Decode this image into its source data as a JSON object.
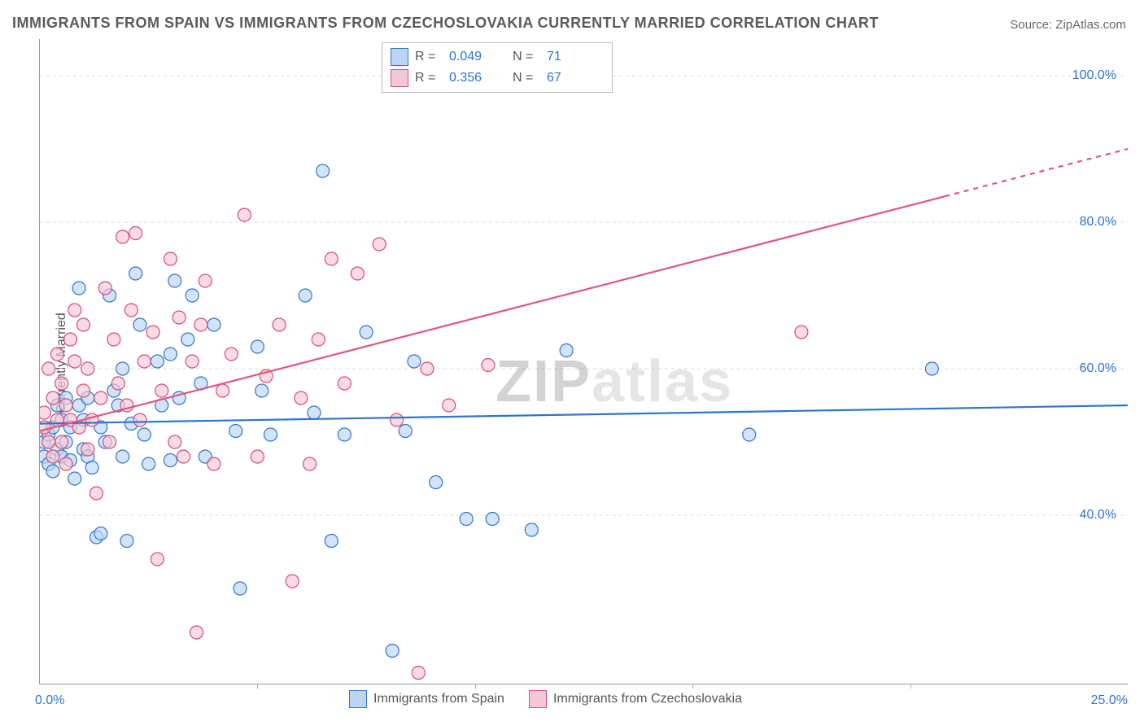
{
  "title": "IMMIGRANTS FROM SPAIN VS IMMIGRANTS FROM CZECHOSLOVAKIA CURRENTLY MARRIED CORRELATION CHART",
  "source_prefix": "Source: ",
  "source_site": "ZipAtlas.com",
  "watermark": {
    "part1": "ZIP",
    "part2": "atlas"
  },
  "chart": {
    "type": "scatter",
    "ylabel": "Currently Married",
    "xlim": [
      0,
      25
    ],
    "ylim": [
      17,
      105
    ],
    "x_min_label": "0.0%",
    "x_max_label": "25.0%",
    "y_ticks": [
      40,
      60,
      80,
      100
    ],
    "y_tick_labels": [
      "40.0%",
      "60.0%",
      "80.0%",
      "100.0%"
    ],
    "x_minor_ticks": [
      5,
      10,
      15,
      20
    ],
    "grid_color": "#dddddd",
    "grid_dash": "4 4",
    "marker_radius": 8,
    "marker_stroke_width": 1.2,
    "trend_line_width": 2.2,
    "legend_box": {
      "r_label": "R =",
      "n_label": "N ="
    },
    "series": [
      {
        "name": "Immigrants from Spain",
        "R": "0.049",
        "N": "71",
        "fill": "#bcd5f5",
        "stroke": "#2f74d0",
        "trend_color": "#2f74d0",
        "trend": {
          "x1": 0,
          "y1": 52.5,
          "x2": 25,
          "y2": 55.0,
          "dash_from_x": null
        },
        "points": [
          [
            0.1,
            48
          ],
          [
            0.1,
            50
          ],
          [
            0.2,
            47
          ],
          [
            0.2,
            51
          ],
          [
            0.3,
            52
          ],
          [
            0.3,
            46
          ],
          [
            0.4,
            55
          ],
          [
            0.4,
            49
          ],
          [
            0.5,
            48
          ],
          [
            0.5,
            53
          ],
          [
            0.6,
            50
          ],
          [
            0.6,
            56
          ],
          [
            0.7,
            47.5
          ],
          [
            0.7,
            52
          ],
          [
            0.8,
            45
          ],
          [
            0.9,
            55
          ],
          [
            0.9,
            71
          ],
          [
            1.0,
            49
          ],
          [
            1.0,
            53
          ],
          [
            1.1,
            48
          ],
          [
            1.1,
            56
          ],
          [
            1.2,
            46.5
          ],
          [
            1.3,
            37
          ],
          [
            1.4,
            37.5
          ],
          [
            1.4,
            52
          ],
          [
            1.5,
            50
          ],
          [
            1.6,
            70
          ],
          [
            1.7,
            57
          ],
          [
            1.8,
            55
          ],
          [
            1.9,
            48
          ],
          [
            1.9,
            60
          ],
          [
            2.0,
            36.5
          ],
          [
            2.1,
            52.5
          ],
          [
            2.2,
            73
          ],
          [
            2.3,
            66
          ],
          [
            2.4,
            51
          ],
          [
            2.5,
            47
          ],
          [
            2.7,
            61
          ],
          [
            2.8,
            55
          ],
          [
            3.0,
            62
          ],
          [
            3.0,
            47.5
          ],
          [
            3.1,
            72
          ],
          [
            3.2,
            56
          ],
          [
            3.4,
            64
          ],
          [
            3.5,
            70
          ],
          [
            3.7,
            58
          ],
          [
            3.8,
            48
          ],
          [
            4.0,
            66
          ],
          [
            4.5,
            51.5
          ],
          [
            4.6,
            30
          ],
          [
            5.0,
            63
          ],
          [
            5.1,
            57
          ],
          [
            5.3,
            51
          ],
          [
            6.1,
            70
          ],
          [
            6.3,
            54
          ],
          [
            6.5,
            87
          ],
          [
            6.7,
            36.5
          ],
          [
            7.0,
            51
          ],
          [
            7.5,
            65
          ],
          [
            8.1,
            21.5
          ],
          [
            8.4,
            51.5
          ],
          [
            8.6,
            61
          ],
          [
            9.1,
            44.5
          ],
          [
            9.8,
            39.5
          ],
          [
            10.4,
            39.5
          ],
          [
            11.3,
            38
          ],
          [
            12.1,
            62.5
          ],
          [
            16.3,
            51
          ],
          [
            20.5,
            60
          ]
        ]
      },
      {
        "name": "Immigrants from Czechoslovakia",
        "R": "0.356",
        "N": "67",
        "fill": "#f6c8d5",
        "stroke": "#d94a78",
        "trend_color": "#e0567f",
        "trend": {
          "x1": 0,
          "y1": 51.5,
          "x2": 25,
          "y2": 90.0,
          "dash_from_x": 20.8
        },
        "points": [
          [
            0.1,
            52
          ],
          [
            0.1,
            54
          ],
          [
            0.2,
            50
          ],
          [
            0.2,
            60
          ],
          [
            0.3,
            56
          ],
          [
            0.3,
            48
          ],
          [
            0.4,
            62
          ],
          [
            0.4,
            53
          ],
          [
            0.5,
            58
          ],
          [
            0.5,
            50
          ],
          [
            0.6,
            55
          ],
          [
            0.6,
            47
          ],
          [
            0.7,
            64
          ],
          [
            0.7,
            53
          ],
          [
            0.8,
            61
          ],
          [
            0.8,
            68
          ],
          [
            0.9,
            52
          ],
          [
            1.0,
            57
          ],
          [
            1.0,
            66
          ],
          [
            1.1,
            49
          ],
          [
            1.1,
            60
          ],
          [
            1.2,
            53
          ],
          [
            1.3,
            43
          ],
          [
            1.4,
            56
          ],
          [
            1.5,
            71
          ],
          [
            1.6,
            50
          ],
          [
            1.7,
            64
          ],
          [
            1.8,
            58
          ],
          [
            1.9,
            78
          ],
          [
            2.0,
            55
          ],
          [
            2.1,
            68
          ],
          [
            2.2,
            78.5
          ],
          [
            2.3,
            53
          ],
          [
            2.4,
            61
          ],
          [
            2.6,
            65
          ],
          [
            2.7,
            34
          ],
          [
            2.8,
            57
          ],
          [
            3.0,
            75
          ],
          [
            3.1,
            50
          ],
          [
            3.2,
            67
          ],
          [
            3.3,
            48
          ],
          [
            3.5,
            61
          ],
          [
            3.6,
            24
          ],
          [
            3.7,
            66
          ],
          [
            3.8,
            72
          ],
          [
            4.0,
            47
          ],
          [
            4.2,
            57
          ],
          [
            4.4,
            62
          ],
          [
            4.7,
            81
          ],
          [
            5.0,
            48
          ],
          [
            5.2,
            59
          ],
          [
            5.5,
            66
          ],
          [
            5.8,
            31
          ],
          [
            6.0,
            56
          ],
          [
            6.2,
            47
          ],
          [
            6.4,
            64
          ],
          [
            6.7,
            75
          ],
          [
            7.0,
            58
          ],
          [
            7.3,
            73
          ],
          [
            7.8,
            77
          ],
          [
            8.2,
            53
          ],
          [
            8.7,
            18.5
          ],
          [
            8.9,
            60
          ],
          [
            9.4,
            55
          ],
          [
            10.3,
            60.5
          ],
          [
            17.5,
            65
          ]
        ]
      }
    ]
  }
}
